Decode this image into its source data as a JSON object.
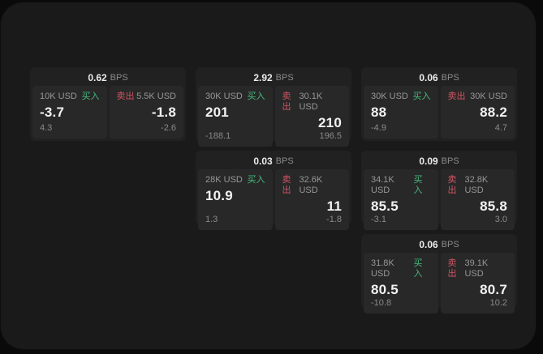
{
  "labels": {
    "bps": "BPS",
    "buy": "买入",
    "sell": "卖出"
  },
  "colors": {
    "buy_green": "#46b97c",
    "sell_red": "#cf5563",
    "outer_background": "#0a0a0a",
    "panel_background": "#1a1a1a",
    "card_background": "#212121",
    "cell_background": "#282828"
  },
  "cards": [
    {
      "bps_value": "0.62",
      "buy": {
        "amount": "10K USD",
        "price": "-3.7",
        "change": "4.3"
      },
      "sell": {
        "amount": "5.5K USD",
        "price": "-1.8",
        "change": "-2.6"
      }
    },
    {
      "bps_value": "2.92",
      "buy": {
        "amount": "30K USD",
        "price": "201",
        "change": "-188.1"
      },
      "sell": {
        "amount": "30.1K USD",
        "price": "210",
        "change": "196.5"
      }
    },
    {
      "bps_value": "0.06",
      "buy": {
        "amount": "30K USD",
        "price": "88",
        "change": "-4.9"
      },
      "sell": {
        "amount": "30K USD",
        "price": "88.2",
        "change": "4.7"
      }
    },
    {
      "bps_value": "0.03",
      "buy": {
        "amount": "28K USD",
        "price": "10.9",
        "change": "1.3"
      },
      "sell": {
        "amount": "32.6K USD",
        "price": "11",
        "change": "-1.8"
      }
    },
    {
      "bps_value": "0.09",
      "buy": {
        "amount": "34.1K USD",
        "price": "85.5",
        "change": "-3.1"
      },
      "sell": {
        "amount": "32.8K USD",
        "price": "85.8",
        "change": "3.0"
      }
    },
    {
      "bps_value": "0.06",
      "buy": {
        "amount": "31.8K USD",
        "price": "80.5",
        "change": "-10.8"
      },
      "sell": {
        "amount": "39.1K USD",
        "price": "80.7",
        "change": "10.2"
      }
    }
  ]
}
